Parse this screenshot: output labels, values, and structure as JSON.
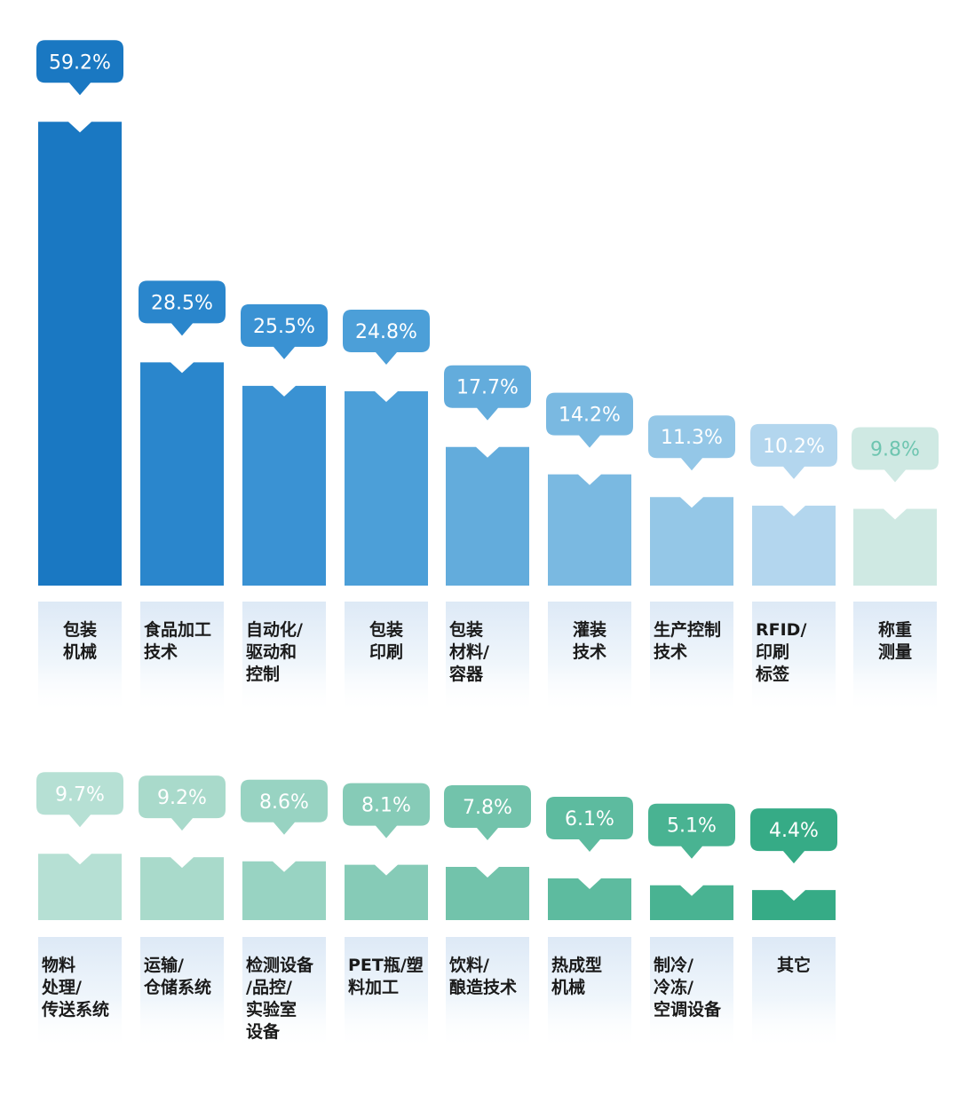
{
  "chart_data": [
    {
      "type": "bar",
      "categories": [
        "包装机械",
        "食品加工技术",
        "自动化/驱动和控制",
        "包装印刷",
        "包装材料/容器",
        "灌装技术",
        "生产控制技术",
        "RFID/印刷标签",
        "称重测量"
      ],
      "category_lines": [
        [
          "包装",
          "机械"
        ],
        [
          "食品加工",
          "技术"
        ],
        [
          "自动化/",
          "驱动和",
          "控制"
        ],
        [
          "包装",
          "印刷"
        ],
        [
          "包装",
          "材料/",
          "容器"
        ],
        [
          "灌装",
          "技术"
        ],
        [
          "生产控制",
          "技术"
        ],
        [
          "RFID/",
          "印刷",
          "标签"
        ],
        [
          "称重",
          "测量"
        ]
      ],
      "values": [
        59.2,
        28.5,
        25.5,
        24.8,
        17.7,
        14.2,
        11.3,
        10.2,
        9.8
      ],
      "value_labels": [
        "59.2%",
        "28.5%",
        "25.5%",
        "24.8%",
        "17.7%",
        "14.2%",
        "11.3%",
        "10.2%",
        "9.8%"
      ],
      "colors": [
        "#1a78c2",
        "#2a86cc",
        "#3a92d3",
        "#4c9fd8",
        "#63acdc",
        "#7ab9e1",
        "#94c7e7",
        "#b3d6ee",
        "#cfe9e3"
      ],
      "label_text_colors": [
        "#ffffff",
        "#ffffff",
        "#ffffff",
        "#ffffff",
        "#ffffff",
        "#ffffff",
        "#ffffff",
        "#ffffff",
        "#6ec5b0"
      ]
    },
    {
      "type": "bar",
      "categories": [
        "物料处理/传送系统",
        "运输/仓储系统",
        "检测设备/品控/实验室设备",
        "PET瓶/塑料加工",
        "饮料/酿造技术",
        "热成型机械",
        "制冷/冷冻/空调设备",
        "其它"
      ],
      "category_lines": [
        [
          "物料",
          "处理/",
          "传送系统"
        ],
        [
          "运输/",
          "仓储系统"
        ],
        [
          "检测设备",
          "/品控/",
          "实验室",
          "设备"
        ],
        [
          "PET瓶/塑",
          "料加工"
        ],
        [
          "饮料/",
          "酿造技术"
        ],
        [
          "热成型",
          "机械"
        ],
        [
          "制冷/",
          "冷冻/",
          "空调设备"
        ],
        [
          "其它"
        ]
      ],
      "values": [
        9.7,
        9.2,
        8.6,
        8.1,
        7.8,
        6.1,
        5.1,
        4.4
      ],
      "value_labels": [
        "9.7%",
        "9.2%",
        "8.6%",
        "8.1%",
        "7.8%",
        "6.1%",
        "5.1%",
        "4.4%"
      ],
      "colors": [
        "#b6e0d4",
        "#a9dacb",
        "#98d3c2",
        "#86cbb7",
        "#72c3ab",
        "#5dbb9f",
        "#49b392",
        "#36ab86"
      ],
      "label_text_colors": [
        "#ffffff",
        "#ffffff",
        "#ffffff",
        "#ffffff",
        "#ffffff",
        "#ffffff",
        "#ffffff",
        "#ffffff"
      ]
    }
  ]
}
